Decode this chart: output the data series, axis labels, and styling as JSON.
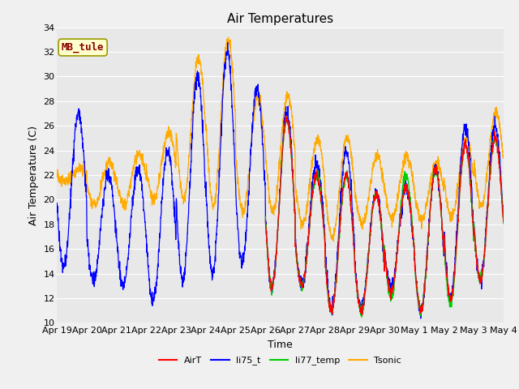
{
  "title": "Air Temperatures",
  "ylabel": "Air Temperature (C)",
  "xlabel": "Time",
  "annotation": "MB_tule",
  "ylim": [
    10,
    34
  ],
  "yticks": [
    10,
    12,
    14,
    16,
    18,
    20,
    22,
    24,
    26,
    28,
    30,
    32,
    34
  ],
  "xtick_labels": [
    "Apr 19",
    "Apr 20",
    "Apr 21",
    "Apr 22",
    "Apr 23",
    "Apr 24",
    "Apr 25",
    "Apr 26",
    "Apr 27",
    "Apr 28",
    "Apr 29",
    "Apr 30",
    "May 1",
    "May 2",
    "May 3",
    "May 4"
  ],
  "n_days": 15,
  "colors": {
    "AirT": "#ff0000",
    "li75_t": "#0000ff",
    "li77_temp": "#00cc00",
    "Tsonic": "#ffaa00",
    "grid": "#ffffff",
    "plot_bg": "#e8e8e8",
    "fig_bg": "#f0f0f0"
  },
  "legend_labels": [
    "AirT",
    "li75_t",
    "li77_temp",
    "Tsonic"
  ],
  "title_fontsize": 11,
  "label_fontsize": 9,
  "tick_fontsize": 8,
  "annotation_fontsize": 9,
  "linewidth": 0.9,
  "li75_mins": [
    14.5,
    13.5,
    13.0,
    11.8,
    13.5,
    14.0,
    15.0,
    13.0,
    13.0,
    11.0,
    11.2,
    12.8,
    11.0,
    12.0,
    13.5
  ],
  "li75_maxs": [
    27.0,
    22.0,
    22.5,
    24.0,
    30.0,
    32.0,
    29.0,
    27.0,
    23.0,
    24.0,
    20.5,
    21.0,
    22.5,
    26.0,
    26.0
  ],
  "tsonic_mins": [
    21.5,
    19.5,
    19.5,
    20.0,
    20.0,
    19.5,
    19.0,
    19.0,
    18.0,
    17.0,
    18.0,
    18.5,
    18.5,
    18.5,
    19.5
  ],
  "tsonic_maxs": [
    22.5,
    23.0,
    23.8,
    25.5,
    31.5,
    33.0,
    28.5,
    28.5,
    25.0,
    25.0,
    23.5,
    23.5,
    23.0,
    25.0,
    27.0
  ],
  "airt_mins": [
    null,
    null,
    null,
    null,
    null,
    null,
    null,
    13.0,
    13.0,
    11.0,
    11.0,
    12.5,
    11.0,
    12.0,
    13.5
  ],
  "airt_maxs": [
    null,
    null,
    null,
    null,
    null,
    null,
    null,
    26.5,
    22.0,
    22.0,
    20.5,
    21.0,
    22.5,
    24.5,
    25.0
  ],
  "li77_mins": [
    null,
    null,
    null,
    null,
    null,
    null,
    null,
    13.0,
    13.0,
    11.0,
    11.0,
    12.0,
    11.0,
    11.5,
    13.5
  ],
  "li77_maxs": [
    null,
    null,
    null,
    null,
    null,
    null,
    null,
    26.5,
    22.0,
    22.0,
    20.5,
    22.0,
    22.5,
    24.5,
    25.0
  ]
}
